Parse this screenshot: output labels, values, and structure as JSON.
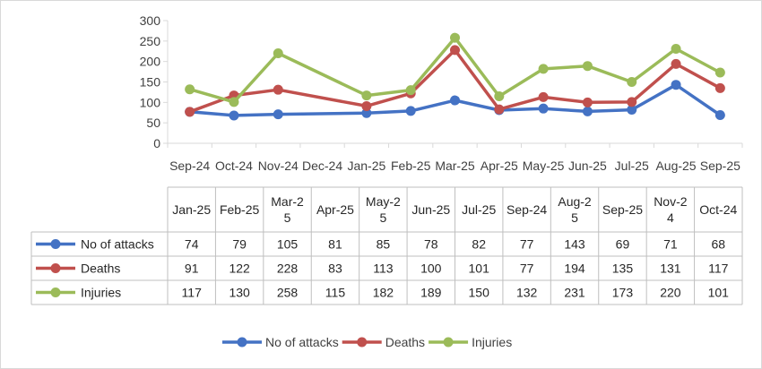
{
  "chart_data": {
    "type": "line",
    "x": [
      "Sep-24",
      "Oct-24",
      "Nov-24",
      "Dec-24",
      "Jan-25",
      "Feb-25",
      "Mar-25",
      "Apr-25",
      "May-25",
      "Jun-25",
      "Jul-25",
      "Aug-25",
      "Sep-25"
    ],
    "ylim": [
      0,
      300
    ],
    "yticks": [
      "0",
      "50",
      "100",
      "150",
      "200",
      "250",
      "300"
    ],
    "grid": false,
    "legend": "bottom",
    "series": [
      {
        "name": "No of attacks",
        "color": "#4472C4",
        "values": [
          77,
          68,
          71,
          null,
          74,
          79,
          105,
          81,
          85,
          78,
          82,
          143,
          69
        ]
      },
      {
        "name": "Deaths",
        "color": "#C0504D",
        "values": [
          77,
          117,
          131,
          null,
          91,
          122,
          228,
          83,
          113,
          100,
          101,
          194,
          135
        ]
      },
      {
        "name": "Injuries",
        "color": "#9BBB59",
        "values": [
          132,
          101,
          220,
          null,
          117,
          130,
          258,
          115,
          182,
          189,
          150,
          231,
          173
        ]
      }
    ],
    "table": {
      "columns": [
        "Jan-25",
        "Feb-25",
        "Mar-25",
        "Apr-25",
        "May-25",
        "Jun-25",
        "Jul-25",
        "Sep-24",
        "Aug-25",
        "Sep-25",
        "Nov-24",
        "Oct-24"
      ],
      "column_labels": [
        [
          "Jan-25"
        ],
        [
          "Feb-25"
        ],
        [
          "Mar-2",
          "5"
        ],
        [
          "Apr-25"
        ],
        [
          "May-2",
          "5"
        ],
        [
          "Jun-25"
        ],
        [
          "Jul-25"
        ],
        [
          "Sep-24"
        ],
        [
          "Aug-2",
          "5"
        ],
        [
          "Sep-25"
        ],
        [
          "Nov-2",
          "4"
        ],
        [
          "Oct-24"
        ]
      ],
      "rows": [
        {
          "name": "No of attacks",
          "color": "#4472C4",
          "values": [
            "74",
            "79",
            "105",
            "81",
            "85",
            "78",
            "82",
            "77",
            "143",
            "69",
            "71",
            "68"
          ]
        },
        {
          "name": "Deaths",
          "color": "#C0504D",
          "values": [
            "91",
            "122",
            "228",
            "83",
            "113",
            "100",
            "101",
            "77",
            "194",
            "135",
            "131",
            "117"
          ]
        },
        {
          "name": "Injuries",
          "color": "#9BBB59",
          "values": [
            "117",
            "130",
            "258",
            "115",
            "182",
            "189",
            "150",
            "132",
            "231",
            "173",
            "220",
            "101"
          ]
        }
      ]
    }
  }
}
